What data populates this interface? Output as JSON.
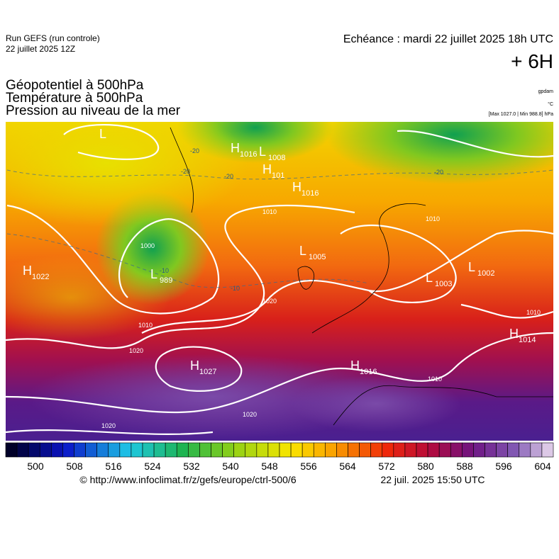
{
  "header": {
    "run": "Run GEFS (run controle)",
    "run_date": "22 juillet 2025 12Z",
    "echeance": "Echéance : mardi 22 juillet 2025 18h UTC",
    "lead": "+ 6H"
  },
  "fields": [
    "Géopotentiel à 500hPa",
    "Température à 500hPa",
    "Pression au niveau de la mer"
  ],
  "units": [
    "gpdam",
    "°C",
    "[Max 1027.0 | Min 988.8] hPa"
  ],
  "map": {
    "centers": [
      {
        "kind": "L",
        "value": null
      },
      {
        "kind": "H",
        "value": "1016"
      },
      {
        "kind": "L",
        "value": "1008"
      },
      {
        "kind": "H",
        "value": "101"
      },
      {
        "kind": "H",
        "value": "1016"
      },
      {
        "kind": "L",
        "value": "1005"
      },
      {
        "kind": "H",
        "value": "1022"
      },
      {
        "kind": "L",
        "value": "989"
      },
      {
        "kind": "L",
        "value": "1003"
      },
      {
        "kind": "L",
        "value": "1002"
      },
      {
        "kind": "H",
        "value": "1014"
      },
      {
        "kind": "H",
        "value": "1027"
      },
      {
        "kind": "H",
        "value": "1016"
      }
    ],
    "isobar_labels": [
      "1010",
      "1010",
      "1010",
      "1010",
      "1010",
      "1000",
      "1020",
      "1020",
      "1020",
      "1020"
    ],
    "temperature_labels": [
      "-20",
      "-20",
      "-20",
      "-20",
      "-10",
      "-10"
    ]
  },
  "colorbar": {
    "ticks": [
      "500",
      "508",
      "516",
      "524",
      "532",
      "540",
      "548",
      "556",
      "564",
      "572",
      "580",
      "588",
      "596",
      "604"
    ]
  },
  "footer": {
    "source": "© http://www.infoclimat.fr/z/gefs/europe/ctrl-500/6",
    "timestamp": "22 juil. 2025 15:50 UTC"
  }
}
